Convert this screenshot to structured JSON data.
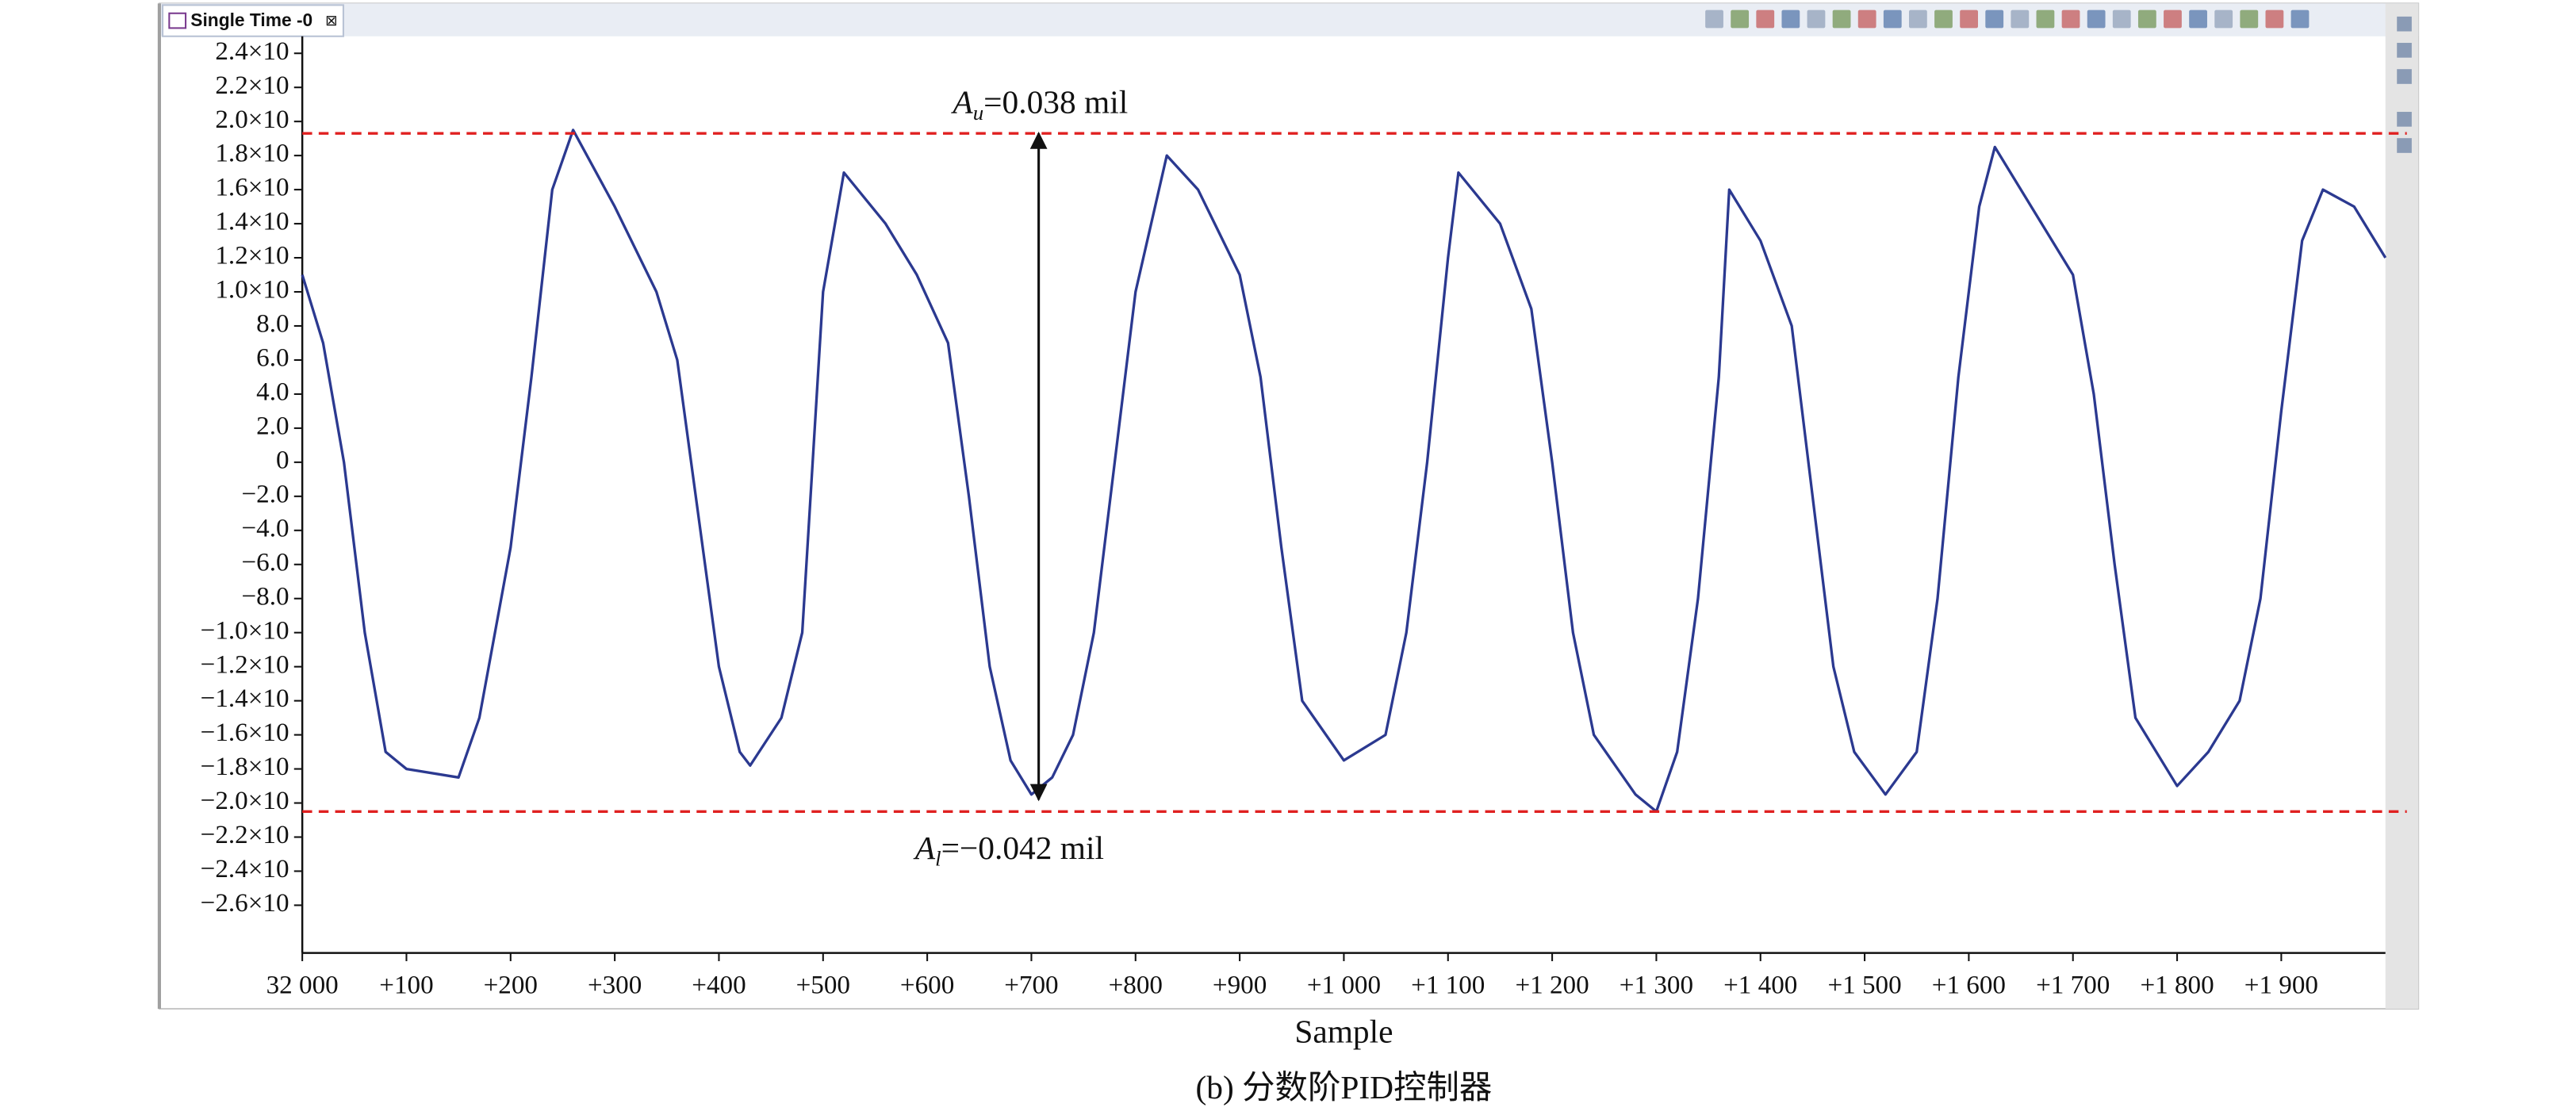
{
  "window": {
    "tab": "Single Time -0"
  },
  "caption": "(b) 分数阶PID控制器",
  "chart_data": {
    "type": "line",
    "x_label": "Sample",
    "color": "#2b3990",
    "x": [
      32000,
      32020,
      32040,
      32060,
      32080,
      32100,
      32150,
      32170,
      32200,
      32220,
      32240,
      32260,
      32300,
      32340,
      32360,
      32380,
      32400,
      32420,
      32430,
      32460,
      32480,
      32490,
      32500,
      32520,
      32560,
      32590,
      32620,
      32640,
      32660,
      32680,
      32700,
      32720,
      32740,
      32760,
      32780,
      32800,
      32830,
      32860,
      32900,
      32920,
      32940,
      32960,
      33000,
      33040,
      33060,
      33080,
      33100,
      33110,
      33150,
      33180,
      33200,
      33220,
      33240,
      33280,
      33300,
      33320,
      33340,
      33360,
      33370,
      33400,
      33430,
      33450,
      33470,
      33490,
      33520,
      33550,
      33570,
      33590,
      33610,
      33625,
      33660,
      33700,
      33720,
      33740,
      33760,
      33800,
      33830,
      33860,
      33880,
      33900,
      33920,
      33940,
      33970,
      34000
    ],
    "values": [
      11,
      7,
      0,
      -10,
      -17,
      -18,
      -18.5,
      -15,
      -5,
      5,
      16,
      19.5,
      15,
      10,
      6,
      -3,
      -12,
      -17,
      -17.8,
      -15,
      -10,
      0,
      10,
      17,
      14,
      11,
      7,
      -2,
      -12,
      -17.5,
      -19.5,
      -18.5,
      -16,
      -10,
      0,
      10,
      18,
      16,
      11,
      5,
      -5,
      -14,
      -17.5,
      -16,
      -10,
      0,
      12,
      17,
      14,
      9,
      0,
      -10,
      -16,
      -19.5,
      -20.5,
      -17,
      -8,
      5,
      16,
      13,
      8,
      -2,
      -12,
      -17,
      -19.5,
      -17,
      -8,
      5,
      15,
      18.5,
      15,
      11,
      4,
      -6,
      -15,
      -19,
      -17,
      -14,
      -8,
      3,
      13,
      16,
      15,
      12
    ],
    "xlim": [
      32000,
      34000
    ],
    "ylim": [
      -28.8,
      25
    ],
    "xticks": [
      {
        "value": 32000,
        "label": "32 000"
      },
      {
        "value": 32100,
        "label": "+100"
      },
      {
        "value": 32200,
        "label": "+200"
      },
      {
        "value": 32300,
        "label": "+300"
      },
      {
        "value": 32400,
        "label": "+400"
      },
      {
        "value": 32500,
        "label": "+500"
      },
      {
        "value": 32600,
        "label": "+600"
      },
      {
        "value": 32700,
        "label": "+700"
      },
      {
        "value": 32800,
        "label": "+800"
      },
      {
        "value": 32900,
        "label": "+900"
      },
      {
        "value": 33000,
        "label": "+1 000"
      },
      {
        "value": 33100,
        "label": "+1 100"
      },
      {
        "value": 33200,
        "label": "+1 200"
      },
      {
        "value": 33300,
        "label": "+1 300"
      },
      {
        "value": 33400,
        "label": "+1 400"
      },
      {
        "value": 33500,
        "label": "+1 500"
      },
      {
        "value": 33600,
        "label": "+1 600"
      },
      {
        "value": 33700,
        "label": "+1 700"
      },
      {
        "value": 33800,
        "label": "+1 800"
      },
      {
        "value": 33900,
        "label": "+1 900"
      }
    ],
    "yticks": [
      {
        "value": 24,
        "label": "2.4×10"
      },
      {
        "value": 22,
        "label": "2.2×10"
      },
      {
        "value": 20,
        "label": "2.0×10"
      },
      {
        "value": 18,
        "label": "1.8×10"
      },
      {
        "value": 16,
        "label": "1.6×10"
      },
      {
        "value": 14,
        "label": "1.4×10"
      },
      {
        "value": 12,
        "label": "1.2×10"
      },
      {
        "value": 10,
        "label": "1.0×10"
      },
      {
        "value": 8,
        "label": "8.0"
      },
      {
        "value": 6,
        "label": "6.0"
      },
      {
        "value": 4,
        "label": "4.0"
      },
      {
        "value": 2,
        "label": "2.0"
      },
      0,
      {
        "value": -2,
        "label": "−2.0"
      },
      {
        "value": -4,
        "label": "−4.0"
      },
      {
        "value": -6,
        "label": "−6.0"
      },
      {
        "value": -8,
        "label": "−8.0"
      },
      {
        "value": -10,
        "label": "−1.0×10"
      },
      {
        "value": -12,
        "label": "−1.2×10"
      },
      {
        "value": -14,
        "label": "−1.4×10"
      },
      {
        "value": -16,
        "label": "−1.6×10"
      },
      {
        "value": -18,
        "label": "−1.8×10"
      },
      {
        "value": -20,
        "label": "−2.0×10"
      },
      {
        "value": -22,
        "label": "−2.2×10"
      },
      {
        "value": -24,
        "label": "−2.4×10"
      },
      {
        "value": -26,
        "label": "−2.6×10"
      }
    ],
    "reference_lines": [
      {
        "value": 19.3,
        "color": "#e02020"
      },
      {
        "value": -20.5,
        "color": "#e02020"
      }
    ],
    "arrow": {
      "x": 32707,
      "from": -19.8,
      "to": 19.3
    },
    "annotations": [
      {
        "base": "A",
        "sub": "u",
        "text": "=0.038 mil"
      },
      {
        "base": "A",
        "sub": "l",
        "text": "=−0.042 mil"
      }
    ]
  }
}
